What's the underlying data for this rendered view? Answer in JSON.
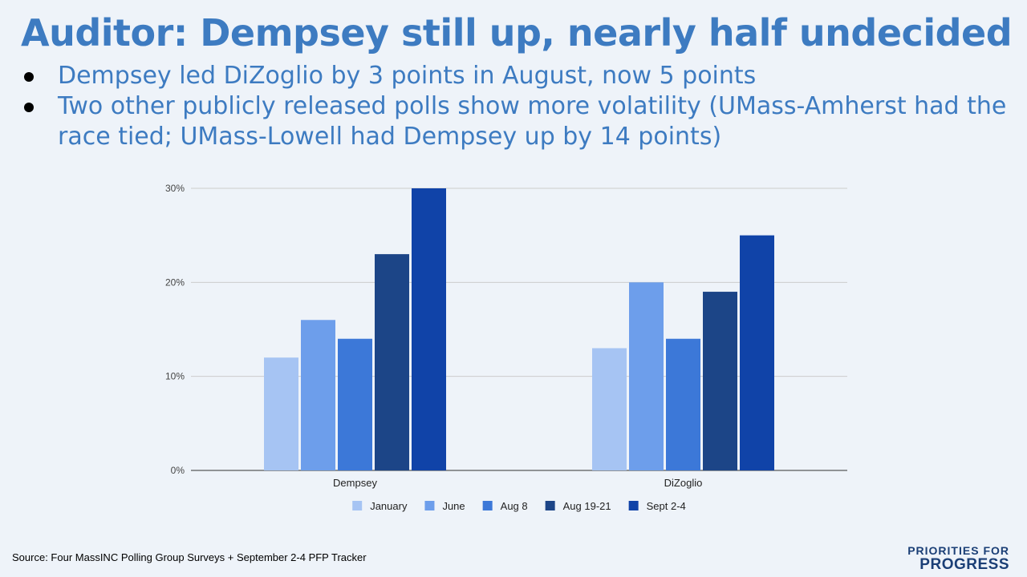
{
  "slide": {
    "title": "Auditor: Dempsey still up, nearly half undecided",
    "bullets": [
      "Dempsey led DiZoglio by 3 points in August, now 5 points",
      "Two other publicly released polls show more volatility (UMass-Amherst had the race tied; UMass-Lowell had Dempsey up by 14 points)"
    ],
    "source": "Source: Four MassINC Polling Group Surveys + September 2-4 PFP Tracker",
    "logo_line1": "PRIORITIES FOR",
    "logo_line2": "PROGRESS"
  },
  "chart_data": {
    "type": "bar",
    "title": "",
    "xlabel": "",
    "ylabel": "",
    "categories": [
      "Dempsey",
      "DiZoglio"
    ],
    "series": [
      {
        "name": "January",
        "color": "#a6c4f3",
        "values": [
          12,
          13
        ]
      },
      {
        "name": "June",
        "color": "#6d9eeb",
        "values": [
          16,
          20
        ]
      },
      {
        "name": "Aug 8",
        "color": "#3c78d8",
        "values": [
          14,
          14
        ]
      },
      {
        "name": "Aug 19-21",
        "color": "#1c4587",
        "values": [
          23,
          19
        ]
      },
      {
        "name": "Sept 2-4",
        "color": "#1043a8",
        "values": [
          30,
          25
        ]
      }
    ],
    "ylim": [
      0,
      30
    ],
    "yticks": [
      0,
      10,
      20,
      30
    ],
    "ytick_labels": [
      "0%",
      "10%",
      "20%",
      "30%"
    ],
    "grid": true,
    "legend": "bottom"
  }
}
